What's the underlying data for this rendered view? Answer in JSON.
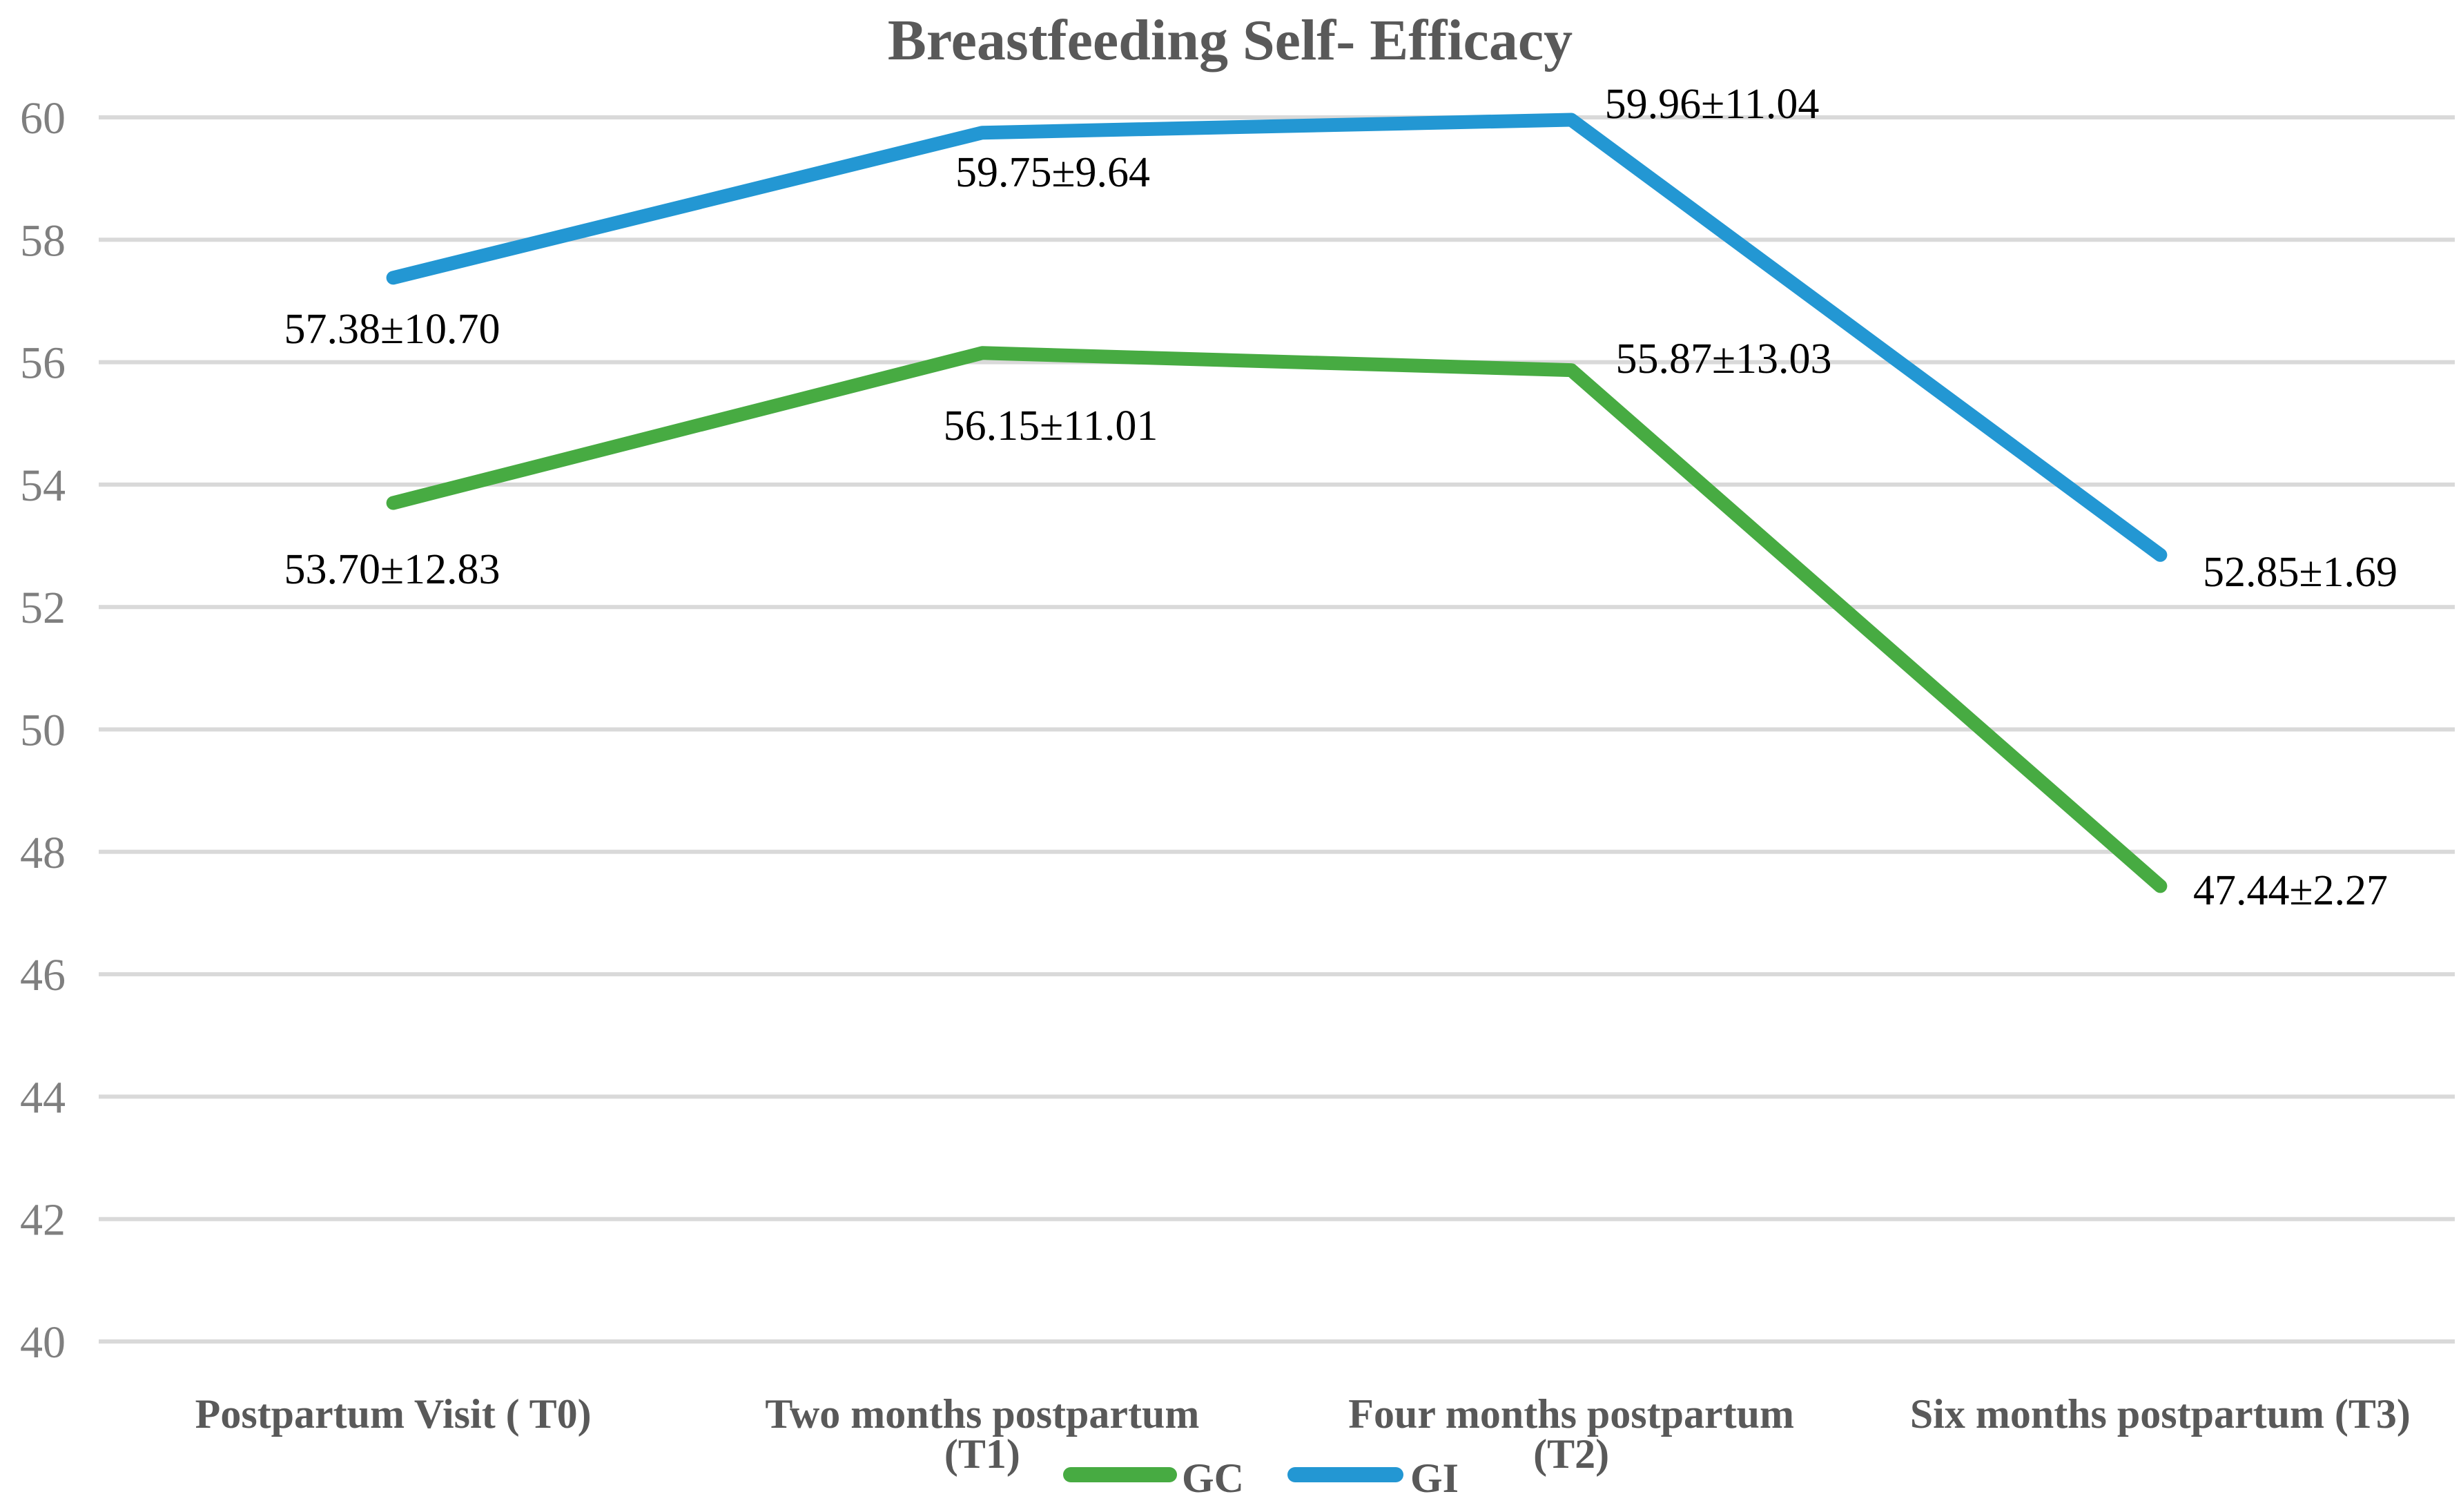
{
  "chart_data": {
    "type": "line",
    "title": "Breastfeeding Self- Efficacy",
    "categories": [
      "Postpartum Visit ( T0)",
      "Two months postpartum (T1)",
      "Four months postpartum (T2)",
      "Six months postpartum (T3)"
    ],
    "category_label_lines": [
      [
        "Postpartum Visit ( T0)"
      ],
      [
        "Two months postpartum",
        "(T1)"
      ],
      [
        "Four months postpartum",
        "(T2)"
      ],
      [
        "Six months postpartum (T3)"
      ]
    ],
    "series": [
      {
        "name": "GC",
        "color": "#47ab42",
        "values": [
          53.7,
          56.15,
          55.87,
          47.44
        ],
        "point_labels": [
          "53.70±12.83",
          "56.15±11.01",
          "55.87±13.03",
          "47.44±2.27"
        ]
      },
      {
        "name": "GI",
        "color": "#2397d3",
        "values": [
          57.38,
          59.75,
          59.96,
          52.85
        ],
        "point_labels": [
          "57.38±10.70",
          "59.75±9.64",
          "59.96±11.04",
          "52.85±1.69"
        ]
      }
    ],
    "y_axis": {
      "min": 40,
      "max": 60,
      "step": 2,
      "tick_labels": [
        "40",
        "42",
        "44",
        "46",
        "48",
        "50",
        "52",
        "54",
        "56",
        "58",
        "60"
      ]
    },
    "xlabel": "",
    "ylabel": "",
    "grid": "horizontal",
    "legend_position": "bottom-center",
    "colors": {
      "background": "#ffffff",
      "gridline": "#d9d9d9",
      "title_text": "#595959",
      "y_tick_text": "#7f7f7f",
      "category_text": "#595959",
      "data_label_text": "#000000"
    }
  }
}
